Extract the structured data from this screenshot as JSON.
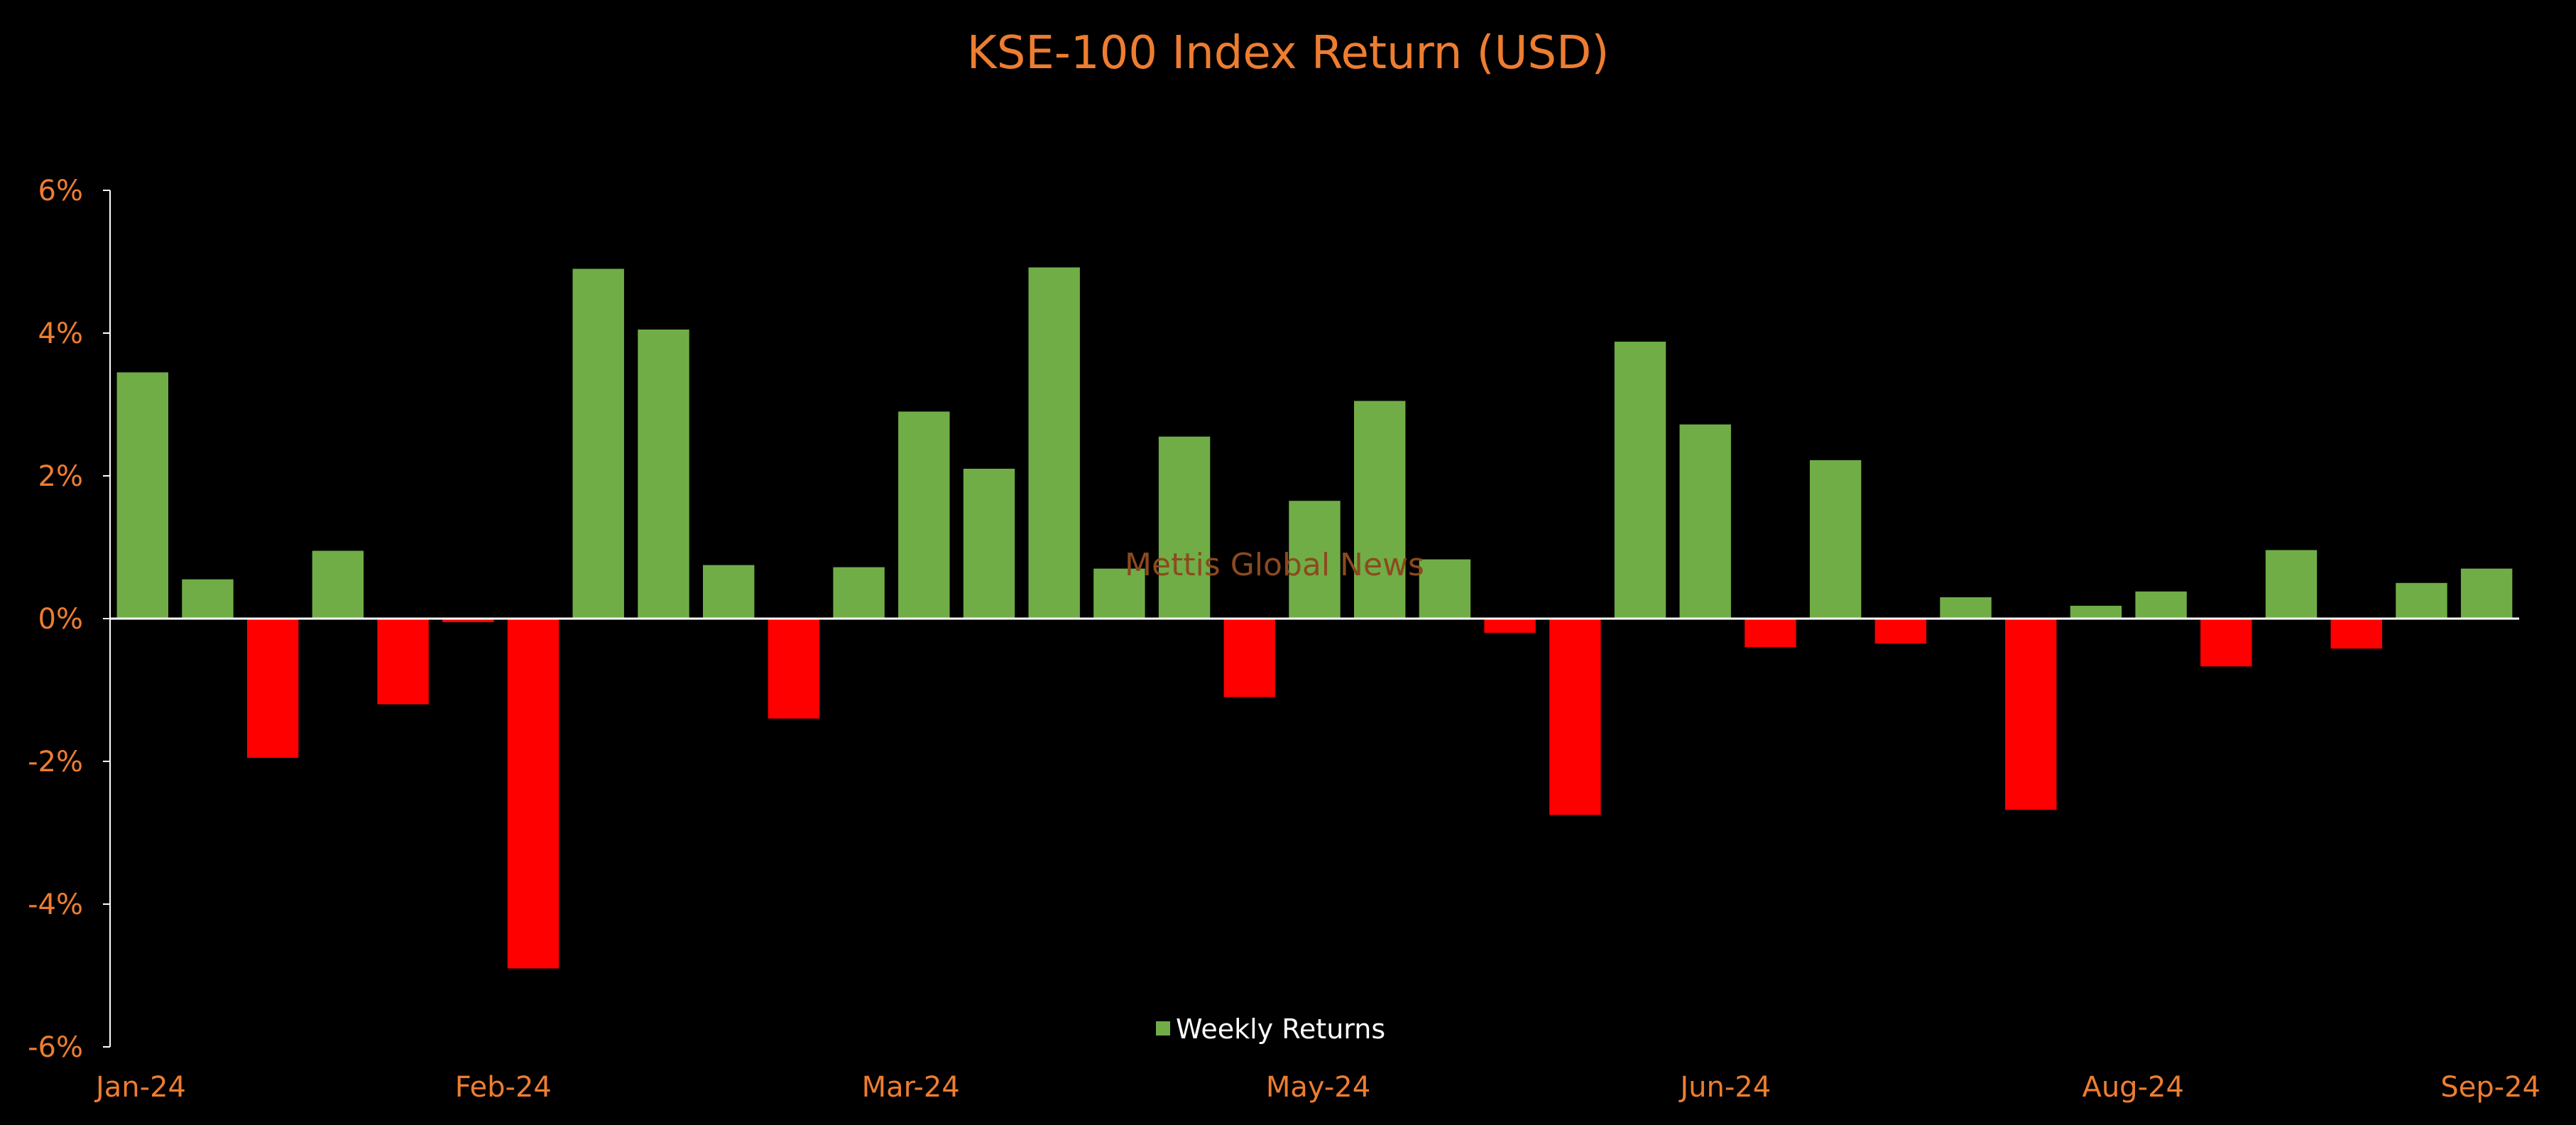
{
  "chart_data": {
    "type": "bar",
    "title": "KSE-100 Index Return (USD)",
    "watermark": "Mettis Global News",
    "ylim": [
      -6,
      6
    ],
    "y_ticks": [
      6,
      4,
      2,
      0,
      -2,
      -4,
      -6
    ],
    "y_tick_labels": [
      "6%",
      "4%",
      "2%",
      "0%",
      "-2%",
      "-4%",
      "-6%"
    ],
    "x_tick_labels": [
      "Jan-24",
      "Feb-24",
      "Mar-24",
      "May-24",
      "Jun-24",
      "Aug-24",
      "Sep-24"
    ],
    "grid": false,
    "legend": {
      "position": "bottom-center",
      "label": "Weekly Returns"
    },
    "colors": {
      "positive": "#70AD47",
      "negative": "#FF0000",
      "text": "#ED7D31",
      "axis": "#FFFFFF",
      "background": "#000000"
    },
    "series": [
      {
        "name": "Weekly Returns",
        "values": [
          3.45,
          0.55,
          -1.95,
          0.95,
          -1.2,
          -0.05,
          -4.9,
          4.9,
          4.05,
          0.75,
          -1.4,
          0.72,
          2.9,
          2.1,
          4.92,
          0.7,
          2.55,
          -1.1,
          1.65,
          3.05,
          0.83,
          -0.2,
          -2.75,
          3.88,
          2.72,
          -0.4,
          2.22,
          -0.35,
          0.3,
          -2.68,
          0.18,
          0.38,
          -0.67,
          0.96,
          -0.42,
          0.5,
          0.7
        ]
      }
    ]
  }
}
